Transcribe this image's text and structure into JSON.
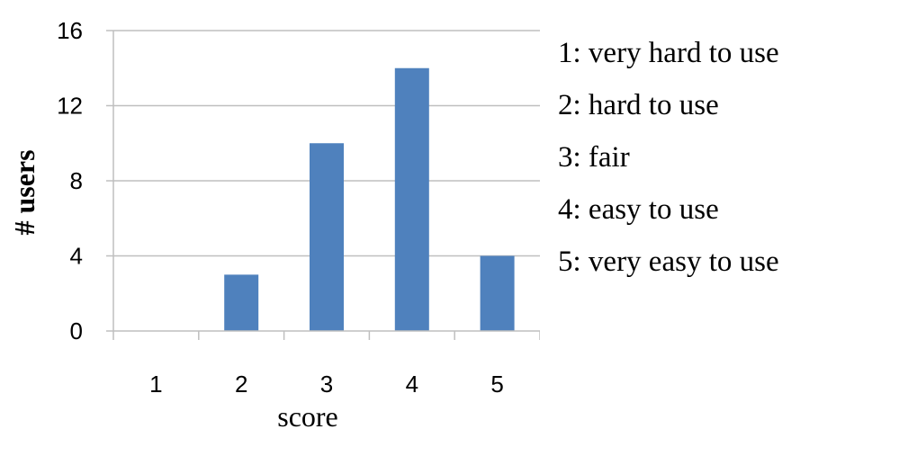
{
  "chart_data": {
    "type": "bar",
    "categories": [
      "1",
      "2",
      "3",
      "4",
      "5"
    ],
    "values": [
      0,
      3,
      10,
      14,
      4
    ],
    "title": "",
    "xlabel": "score",
    "ylabel": "# users",
    "ylim": [
      0,
      16
    ],
    "yticks": [
      0,
      4,
      8,
      12,
      16
    ],
    "grid": "horizontal",
    "bar_color": "#4f81bd",
    "grid_color": "#bfbfbf"
  },
  "legend_text": {
    "items": [
      "1: very hard to use",
      "2: hard to use",
      "3: fair",
      "4: easy to use",
      "5: very easy to use"
    ]
  }
}
